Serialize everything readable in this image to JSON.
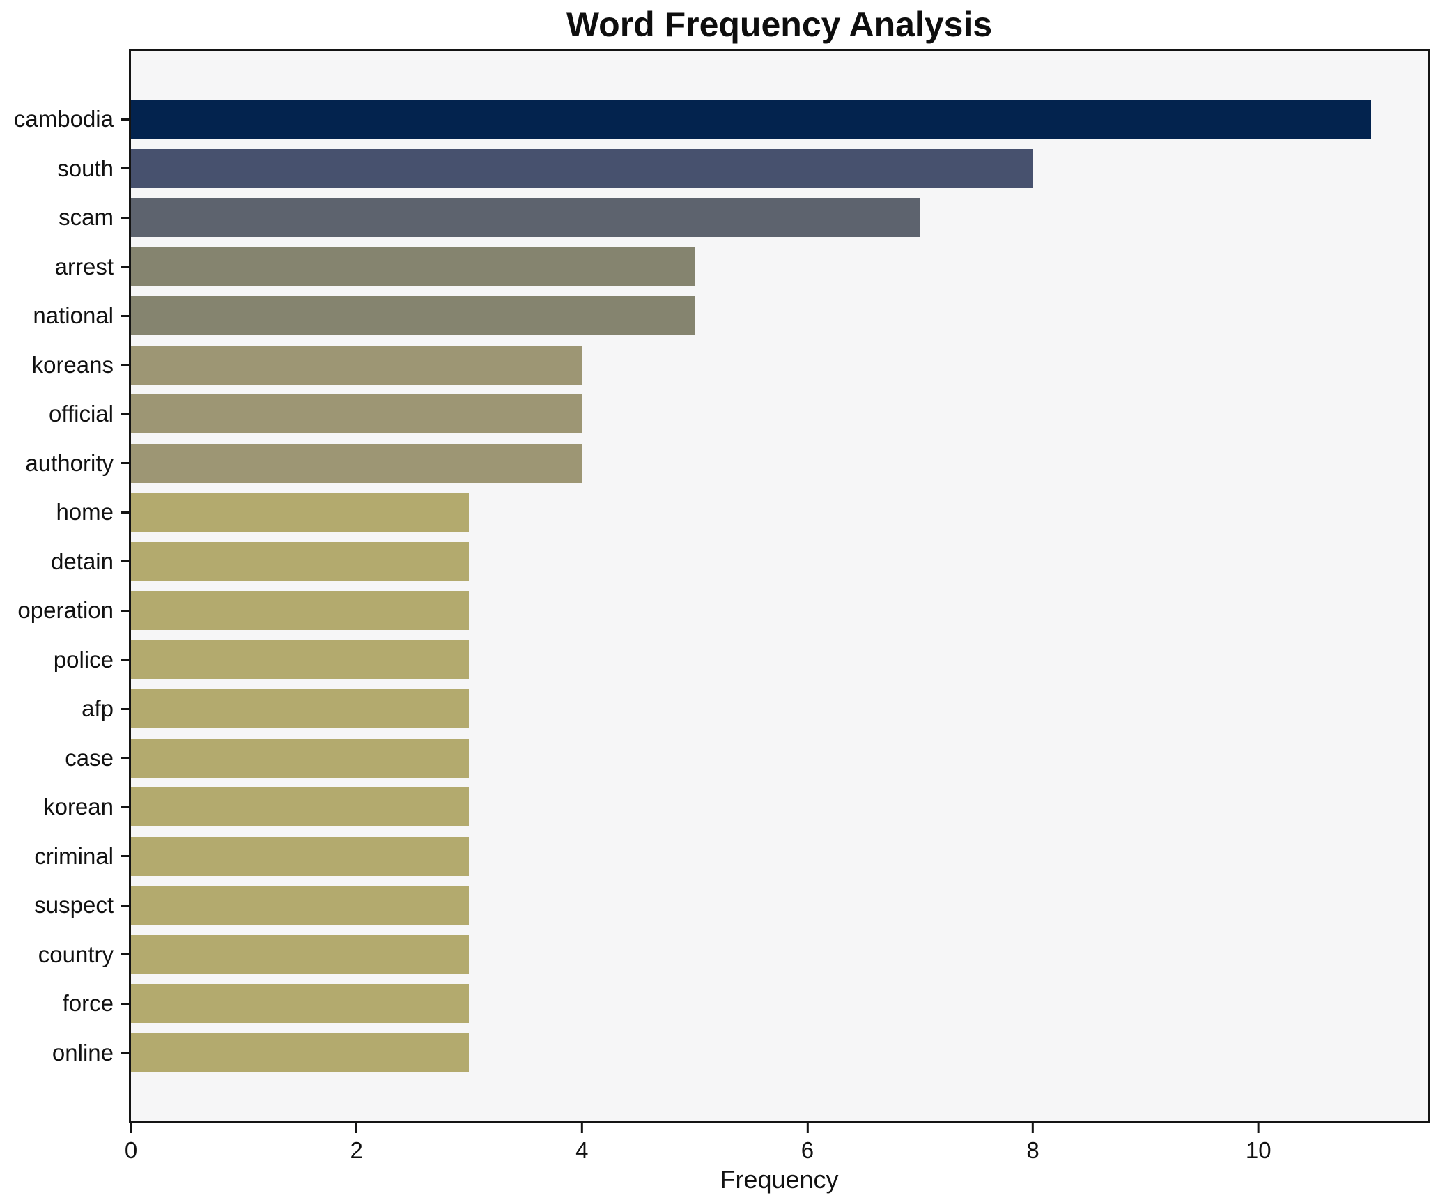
{
  "title": "Word Frequency Analysis",
  "chart_data": {
    "type": "bar",
    "orientation": "horizontal",
    "title": "Word Frequency Analysis",
    "xlabel": "Frequency",
    "ylabel": "",
    "categories": [
      "cambodia",
      "south",
      "scam",
      "arrest",
      "national",
      "koreans",
      "official",
      "authority",
      "home",
      "detain",
      "operation",
      "police",
      "afp",
      "case",
      "korean",
      "criminal",
      "suspect",
      "country",
      "force",
      "online"
    ],
    "values": [
      11,
      8,
      7,
      5,
      5,
      4,
      4,
      4,
      3,
      3,
      3,
      3,
      3,
      3,
      3,
      3,
      3,
      3,
      3,
      3
    ],
    "bar_colors": [
      "#03234e",
      "#47516e",
      "#5d636e",
      "#85846f",
      "#85846f",
      "#9d9674",
      "#9d9674",
      "#9d9674",
      "#b3aa6e",
      "#b3aa6e",
      "#b3aa6e",
      "#b3aa6e",
      "#b3aa6e",
      "#b3aa6e",
      "#b3aa6e",
      "#b3aa6e",
      "#b3aa6e",
      "#b3aa6e",
      "#b3aa6e",
      "#b3aa6e"
    ],
    "xlim": [
      0,
      11.5
    ],
    "xticks": [
      0,
      2,
      4,
      6,
      8,
      10
    ],
    "grid": false,
    "legend": "none",
    "plot_background": "#f6f6f7",
    "figure_background": "#ffffff",
    "spine_color": "#141414"
  }
}
